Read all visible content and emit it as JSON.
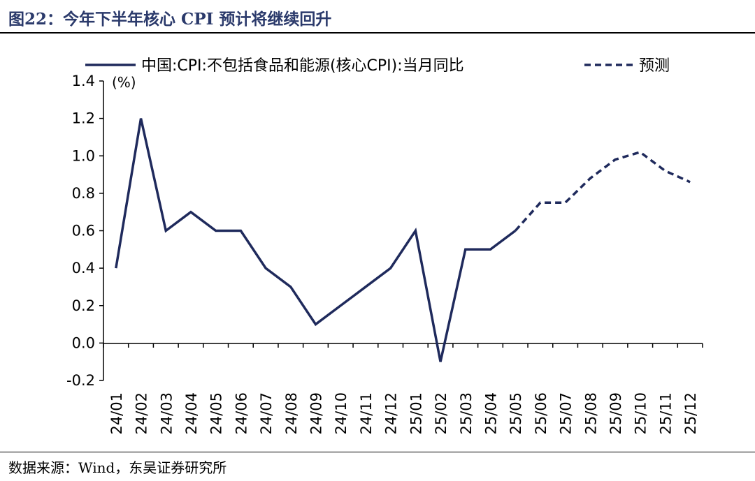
{
  "figure": {
    "title": "图22：今年下半年核心 CPI 预计将继续回升",
    "source": "数据来源：Wind，东吴证券研究所"
  },
  "colors": {
    "series": "#1f2a5c",
    "title": "#2b3a6b",
    "axis": "#000000"
  },
  "chart_data": {
    "type": "line",
    "title": "",
    "xlabel": "",
    "ylabel": "",
    "unit": "(%)",
    "ylim": [
      -0.2,
      1.4
    ],
    "yticks": [
      -0.2,
      0.0,
      0.2,
      0.4,
      0.6,
      0.8,
      1.0,
      1.2,
      1.4
    ],
    "ytick_labels": [
      "-0.2",
      "0.0",
      "0.2",
      "0.4",
      "0.6",
      "0.8",
      "1.0",
      "1.2",
      "1.4"
    ],
    "grid": false,
    "legend_position": "top",
    "x": [
      "24/01",
      "24/02",
      "24/03",
      "24/04",
      "24/05",
      "24/06",
      "24/07",
      "24/08",
      "24/09",
      "24/10",
      "24/11",
      "24/12",
      "25/01",
      "25/02",
      "25/03",
      "25/04",
      "25/05",
      "25/06",
      "25/07",
      "25/08",
      "25/09",
      "25/10",
      "25/11",
      "25/12"
    ],
    "series": [
      {
        "name": "中国:CPI:不包括食品和能源(核心CPI):当月同比",
        "style": "solid",
        "values": [
          0.4,
          1.2,
          0.6,
          0.7,
          0.6,
          0.6,
          0.4,
          0.3,
          0.1,
          0.2,
          0.3,
          0.4,
          0.6,
          -0.1,
          0.5,
          0.5,
          0.6,
          null,
          null,
          null,
          null,
          null,
          null,
          null
        ]
      },
      {
        "name": "预测",
        "style": "dashed",
        "values": [
          null,
          null,
          null,
          null,
          null,
          null,
          null,
          null,
          null,
          null,
          null,
          null,
          null,
          null,
          null,
          null,
          0.6,
          0.75,
          0.75,
          0.88,
          0.98,
          1.02,
          0.92,
          0.86
        ]
      }
    ]
  }
}
